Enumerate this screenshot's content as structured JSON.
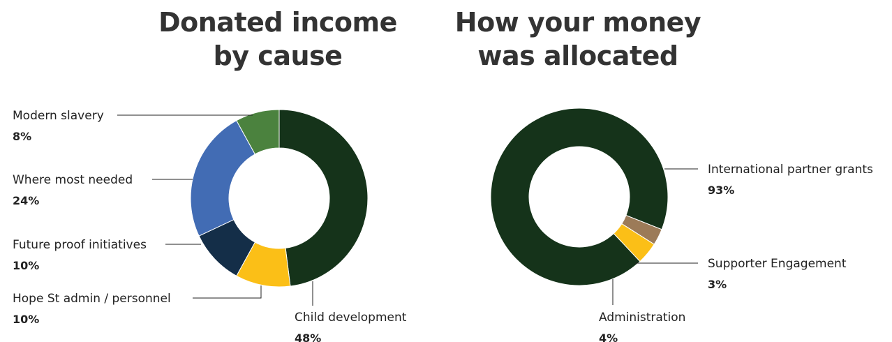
{
  "titles": {
    "left": {
      "line1": "Donated income",
      "line2": "by cause"
    },
    "right": {
      "line1": "How your money",
      "line2": "was allocated"
    }
  },
  "chart_data": [
    {
      "type": "pie",
      "donut": true,
      "title": "Donated income by cause",
      "slices": [
        {
          "label": "Child development",
          "value": 48,
          "display": "48%",
          "color": "#15331a"
        },
        {
          "label": "Hope St admin / personnel",
          "value": 10,
          "display": "10%",
          "color": "#fbbf17"
        },
        {
          "label": "Future proof initiatives",
          "value": 10,
          "display": "10%",
          "color": "#142e48"
        },
        {
          "label": "Where most needed",
          "value": 24,
          "display": "24%",
          "color": "#426cb4"
        },
        {
          "label": "Modern slavery",
          "value": 8,
          "display": "8%",
          "color": "#4b823e"
        }
      ]
    },
    {
      "type": "pie",
      "donut": true,
      "title": "How your money was allocated",
      "slices": [
        {
          "label": "International partner grants",
          "value": 93,
          "display": "93%",
          "color": "#15331a"
        },
        {
          "label": "Supporter Engagement",
          "value": 3,
          "display": "3%",
          "color": "#9c7b58"
        },
        {
          "label": "Administration",
          "value": 4,
          "display": "4%",
          "color": "#fbbf17"
        }
      ]
    }
  ]
}
